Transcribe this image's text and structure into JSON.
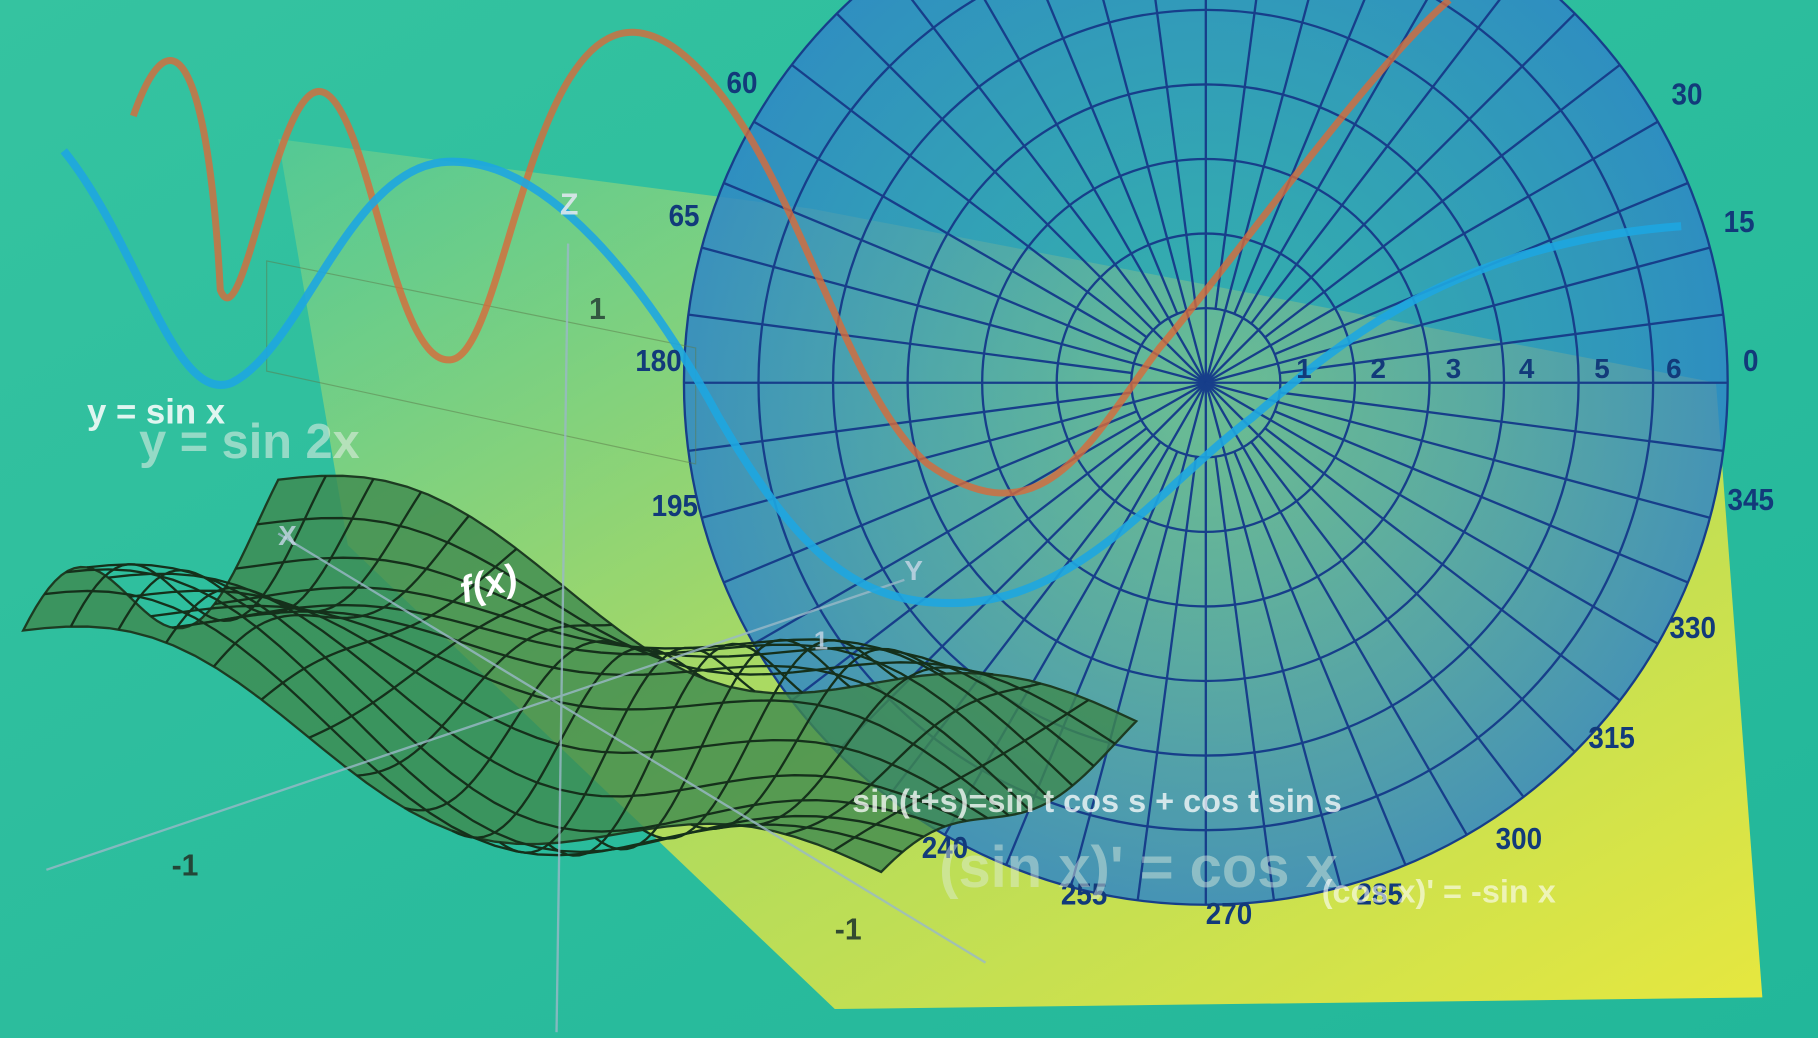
{
  "polar_labels": [
    "60",
    "30",
    "65",
    "15",
    "180",
    "0",
    "195",
    "345",
    "330",
    "315",
    "300",
    "285",
    "270",
    "255",
    "240"
  ],
  "ring_labels": [
    "1",
    "2",
    "3",
    "4",
    "5",
    "6"
  ],
  "formulas": {
    "sin_x": "y = sin x",
    "sin_2x": "y = sin 2x",
    "addition": "sin(t+s)=sin t cos s + cos t sin s",
    "derivative_sin": "(sin x)' = cos x",
    "derivative_cos": "(cos x)' = -sin x",
    "surface": "f(x)"
  },
  "axis_labels": {
    "z": "Z",
    "x": "X",
    "y": "Y",
    "z_one": "1",
    "y_one": "1",
    "x_minus_one": "-1",
    "y_minus_one": "-1"
  }
}
